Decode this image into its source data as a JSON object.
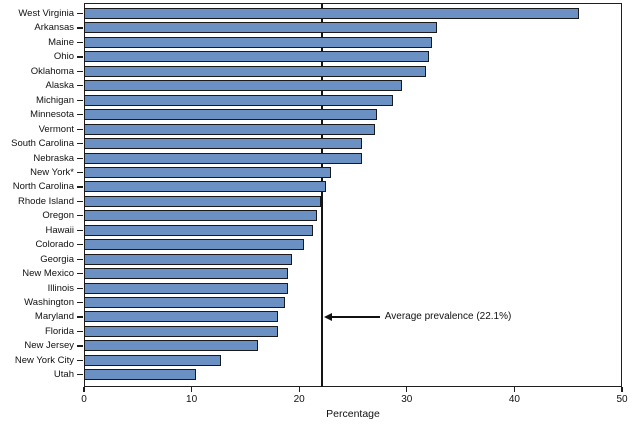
{
  "chart_data": {
    "type": "bar",
    "orientation": "horizontal",
    "xlabel": "Percentage",
    "xlim": [
      0,
      50
    ],
    "xticks": [
      "0",
      "10",
      "20",
      "30",
      "40",
      "50"
    ],
    "grid": false,
    "legend": false,
    "categories": [
      "West Virginia",
      "Arkansas",
      "Maine",
      "Ohio",
      "Oklahoma",
      "Alaska",
      "Michigan",
      "Minnesota",
      "Vermont",
      "South Carolina",
      "Nebraska",
      "New York*",
      "North Carolina",
      "Rhode Island",
      "Oregon",
      "Hawaii",
      "Colorado",
      "Georgia",
      "New Mexico",
      "Illinois",
      "Washington",
      "Maryland",
      "Florida",
      "New Jersey",
      "New York City",
      "Utah"
    ],
    "values": [
      46.0,
      32.8,
      32.3,
      32.1,
      31.8,
      29.6,
      28.7,
      27.2,
      27.0,
      25.8,
      25.8,
      23.0,
      22.5,
      22.0,
      21.7,
      21.3,
      20.4,
      19.3,
      19.0,
      19.0,
      18.7,
      18.0,
      18.0,
      16.2,
      12.7,
      10.4
    ],
    "average_line": {
      "value": 22.1,
      "label": "Average prevalence (22.1%)"
    },
    "colors": {
      "bar_fill": "#6b90c4",
      "bar_border": "#1a1a1a",
      "axis": "#1f1f1f"
    }
  }
}
